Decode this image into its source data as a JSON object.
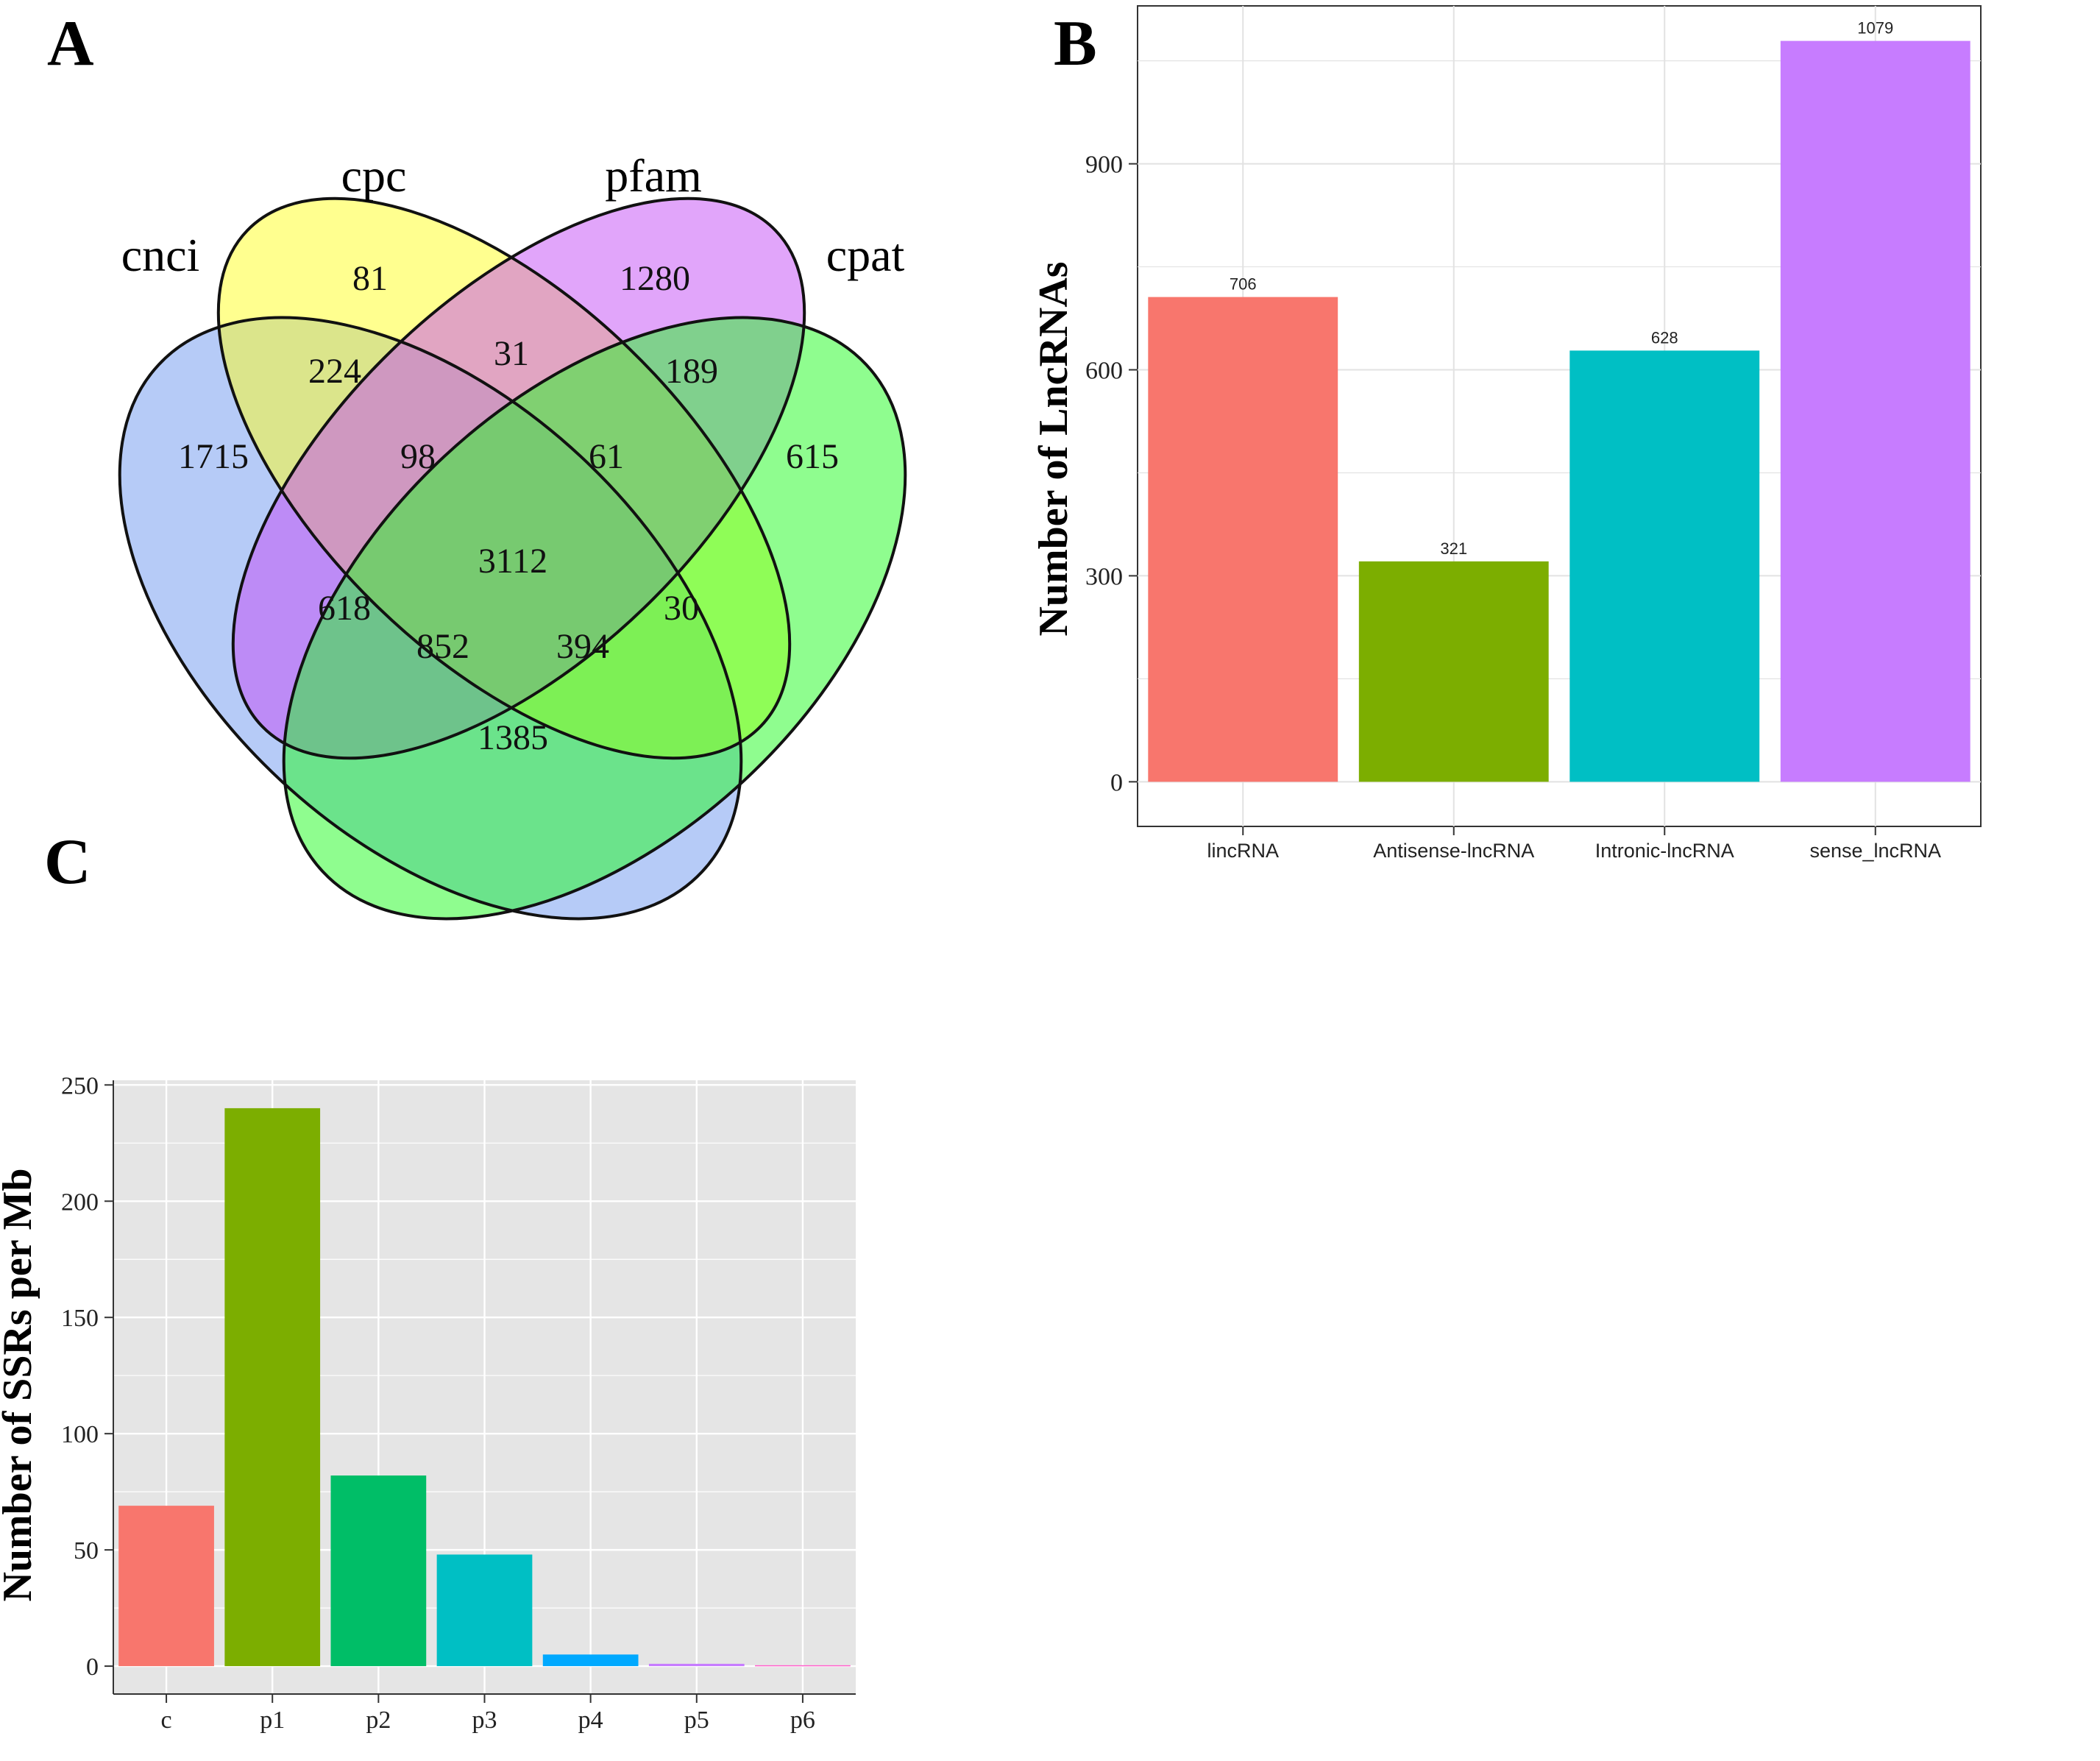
{
  "panels": {
    "A": {
      "letter": "A"
    },
    "B": {
      "letter": "B"
    },
    "C": {
      "letter": "C"
    }
  },
  "venn": {
    "sets": [
      {
        "key": "cnci",
        "label": "cnci",
        "color": "#6d97ef"
      },
      {
        "key": "cpc",
        "label": "cpc",
        "color": "#ffff1f"
      },
      {
        "key": "pfam",
        "label": "pfam",
        "color": "#c34cf5"
      },
      {
        "key": "cpat",
        "label": "cpat",
        "color": "#1ffb1f"
      }
    ],
    "regions": [
      {
        "sets": "cnci",
        "value": "1715"
      },
      {
        "sets": "cpc",
        "value": "81"
      },
      {
        "sets": "pfam",
        "value": "1280"
      },
      {
        "sets": "cpat",
        "value": "615"
      },
      {
        "sets": "cnci+cpc",
        "value": "224"
      },
      {
        "sets": "cpc+pfam",
        "value": "31"
      },
      {
        "sets": "pfam+cpat",
        "value": "189"
      },
      {
        "sets": "cnci+cpc+pfam",
        "value": "98"
      },
      {
        "sets": "cpc+pfam+cpat",
        "value": "61"
      },
      {
        "sets": "cnci+cpc+pfam+cpat",
        "value": "3112"
      },
      {
        "sets": "cnci+pfam",
        "value": "618"
      },
      {
        "sets": "cpc+cpat",
        "value": "30"
      },
      {
        "sets": "cnci+pfam+cpat",
        "value": "852"
      },
      {
        "sets": "cnci+cpc+cpat",
        "value": "394"
      },
      {
        "sets": "cnci+cpat",
        "value": "1385"
      }
    ]
  },
  "chart_data": [
    {
      "panel": "B",
      "type": "bar",
      "title": "",
      "xlabel": "",
      "ylabel": "Number of LncRNAs",
      "categories": [
        "lincRNA",
        "Antisense-lncRNA",
        "Intronic-lncRNA",
        "sense_lncRNA"
      ],
      "values": [
        706,
        321,
        628,
        1079
      ],
      "data_labels": [
        "706",
        "321",
        "628",
        "1079"
      ],
      "colors": [
        "#f8766d",
        "#7cae00",
        "#00bfc4",
        "#c77cff"
      ],
      "ylim": [
        -65,
        1130
      ],
      "yticks": [
        0,
        300,
        600,
        900
      ],
      "ytick_labels": [
        "0",
        "300",
        "600",
        "900"
      ],
      "grid": true,
      "legend": "none"
    },
    {
      "panel": "C",
      "type": "bar",
      "title": "",
      "xlabel": "",
      "ylabel": "Number of SSRs per Mb",
      "categories": [
        "c",
        "p1",
        "p2",
        "p3",
        "p4",
        "p5",
        "p6"
      ],
      "values": [
        69,
        240,
        82,
        48,
        5,
        1,
        0.4
      ],
      "colors": [
        "#f8766d",
        "#7cae00",
        "#00be67",
        "#00bfc4",
        "#00a9ff",
        "#c77cff",
        "#ff61cc"
      ],
      "ylim": [
        -12,
        252
      ],
      "yticks": [
        0,
        50,
        100,
        150,
        200,
        250
      ],
      "ytick_labels": [
        "0",
        "50",
        "100",
        "150",
        "200",
        "250"
      ],
      "grid": true,
      "legend": "none"
    }
  ]
}
